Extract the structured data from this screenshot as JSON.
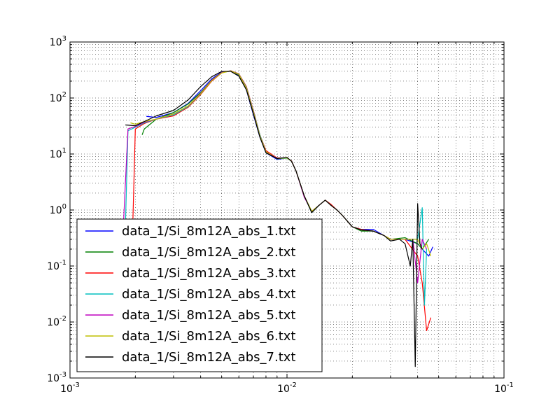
{
  "chart_data": {
    "type": "line",
    "title": "",
    "xlabel": "",
    "ylabel": "",
    "xscale": "log",
    "yscale": "log",
    "xlim": [
      0.001,
      0.1
    ],
    "ylim": [
      0.001,
      1000
    ],
    "grid": "on (major and minor, dotted)",
    "legend_position": "lower-left",
    "x_tick_labels": [
      {
        "base": "10",
        "exp": "-3",
        "value": 0.001
      },
      {
        "base": "10",
        "exp": "-2",
        "value": 0.01
      },
      {
        "base": "10",
        "exp": "-1",
        "value": 0.1
      }
    ],
    "y_tick_labels": [
      {
        "base": "10",
        "exp": "-3",
        "value": 0.001
      },
      {
        "base": "10",
        "exp": "-2",
        "value": 0.01
      },
      {
        "base": "10",
        "exp": "-1",
        "value": 0.1
      },
      {
        "base": "10",
        "exp": "0",
        "value": 1
      },
      {
        "base": "10",
        "exp": "1",
        "value": 10
      },
      {
        "base": "10",
        "exp": "2",
        "value": 100
      },
      {
        "base": "10",
        "exp": "3",
        "value": 1000
      }
    ],
    "series": [
      {
        "name": "data_1/Si_8m12A_abs_1.txt",
        "color": "#0000ff",
        "x": [
          0.00225,
          0.0025,
          0.003,
          0.0035,
          0.004,
          0.0045,
          0.005,
          0.0055,
          0.006,
          0.0065,
          0.007,
          0.0075,
          0.008,
          0.009,
          0.01,
          0.0105,
          0.011,
          0.012,
          0.013,
          0.014,
          0.015,
          0.016,
          0.017,
          0.018,
          0.02,
          0.022,
          0.025,
          0.028,
          0.03,
          0.035,
          0.04,
          0.042,
          0.045,
          0.047
        ],
        "y": [
          47,
          45,
          55,
          80,
          135,
          220,
          290,
          300,
          250,
          140,
          50,
          20,
          10.5,
          8,
          8.5,
          7.5,
          5,
          1.8,
          0.9,
          1.2,
          1.5,
          1.2,
          1.0,
          0.8,
          0.5,
          0.45,
          0.45,
          0.35,
          0.3,
          0.3,
          0.25,
          0.2,
          0.15,
          0.22
        ]
      },
      {
        "name": "data_1/Si_8m12A_abs_2.txt",
        "color": "#008000",
        "x": [
          0.00215,
          0.0022,
          0.0025,
          0.003,
          0.0035,
          0.004,
          0.0045,
          0.005,
          0.0055,
          0.006,
          0.0065,
          0.007,
          0.0075,
          0.008,
          0.009,
          0.01,
          0.0105,
          0.011,
          0.012,
          0.013,
          0.014,
          0.015,
          0.016,
          0.017,
          0.018,
          0.02,
          0.022,
          0.025,
          0.028,
          0.03,
          0.035,
          0.04,
          0.042,
          0.045
        ],
        "y": [
          22,
          28,
          42,
          55,
          78,
          125,
          210,
          285,
          305,
          260,
          150,
          55,
          21,
          11,
          8.2,
          8.5,
          7.5,
          5,
          1.8,
          0.9,
          1.2,
          1.5,
          1.2,
          1.0,
          0.8,
          0.5,
          0.42,
          0.42,
          0.35,
          0.3,
          0.32,
          0.25,
          0.2,
          0.3
        ]
      },
      {
        "name": "data_1/Si_8m12A_abs_3.txt",
        "color": "#ff0000",
        "x": [
          0.00195,
          0.002,
          0.0022,
          0.0025,
          0.003,
          0.0035,
          0.004,
          0.0045,
          0.005,
          0.0055,
          0.006,
          0.0065,
          0.007,
          0.0075,
          0.008,
          0.009,
          0.01,
          0.0105,
          0.011,
          0.012,
          0.013,
          0.014,
          0.015,
          0.016,
          0.017,
          0.018,
          0.02,
          0.022,
          0.025,
          0.028,
          0.03,
          0.035,
          0.04,
          0.042,
          0.044,
          0.046
        ],
        "y": [
          0.7,
          28,
          35,
          42,
          48,
          68,
          115,
          200,
          280,
          308,
          270,
          160,
          60,
          22,
          11.5,
          8.5,
          8.5,
          7.5,
          5,
          1.8,
          0.95,
          1.2,
          1.5,
          1.25,
          1.0,
          0.8,
          0.5,
          0.45,
          0.42,
          0.35,
          0.3,
          0.3,
          0.15,
          0.05,
          0.007,
          0.012
        ]
      },
      {
        "name": "data_1/Si_8m12A_abs_4.txt",
        "color": "#00bfbf",
        "x": [
          0.0018,
          0.00185,
          0.002,
          0.0022,
          0.0025,
          0.003,
          0.0035,
          0.004,
          0.0045,
          0.005,
          0.0055,
          0.006,
          0.0065,
          0.007,
          0.0075,
          0.008,
          0.009,
          0.01,
          0.0105,
          0.011,
          0.012,
          0.013,
          0.014,
          0.015,
          0.016,
          0.017,
          0.018,
          0.02,
          0.022,
          0.025,
          0.028,
          0.03,
          0.035,
          0.04,
          0.042,
          0.043,
          0.044
        ],
        "y": [
          0.5,
          26,
          30,
          36,
          42,
          50,
          70,
          118,
          205,
          282,
          306,
          268,
          155,
          58,
          22,
          11,
          8.3,
          8.4,
          7.4,
          5,
          1.8,
          0.95,
          1.2,
          1.5,
          1.2,
          1.0,
          0.8,
          0.5,
          0.44,
          0.42,
          0.35,
          0.3,
          0.3,
          0.3,
          1.1,
          0.02,
          0.2
        ]
      },
      {
        "name": "data_1/Si_8m12A_abs_5.txt",
        "color": "#bf00bf",
        "x": [
          0.00175,
          0.00185,
          0.002,
          0.0022,
          0.0025,
          0.003,
          0.0035,
          0.004,
          0.0045,
          0.005,
          0.0055,
          0.006,
          0.0065,
          0.007,
          0.0075,
          0.008,
          0.009,
          0.01,
          0.0105,
          0.011,
          0.012,
          0.013,
          0.014,
          0.015,
          0.016,
          0.017,
          0.018,
          0.02,
          0.022,
          0.025,
          0.028,
          0.03,
          0.035,
          0.038,
          0.04,
          0.042,
          0.044
        ],
        "y": [
          0.3,
          28,
          31,
          37,
          42,
          52,
          72,
          120,
          208,
          284,
          305,
          266,
          150,
          56,
          21,
          11,
          8.4,
          8.6,
          7.4,
          5,
          1.7,
          0.95,
          1.2,
          1.5,
          1.2,
          1.0,
          0.8,
          0.5,
          0.44,
          0.42,
          0.35,
          0.3,
          0.3,
          0.3,
          0.05,
          0.3,
          0.2
        ]
      },
      {
        "name": "data_1/Si_8m12A_abs_6.txt",
        "color": "#bfbf00",
        "x": [
          0.0019,
          0.002,
          0.0022,
          0.0025,
          0.003,
          0.0035,
          0.004,
          0.0045,
          0.005,
          0.0055,
          0.006,
          0.0065,
          0.007,
          0.0075,
          0.008,
          0.009,
          0.01,
          0.0105,
          0.011,
          0.012,
          0.013,
          0.014,
          0.015,
          0.016,
          0.017,
          0.018,
          0.02,
          0.022,
          0.025,
          0.028,
          0.03,
          0.035,
          0.04,
          0.042,
          0.044,
          0.046
        ],
        "y": [
          36,
          34,
          38,
          42,
          52,
          72,
          118,
          205,
          280,
          305,
          265,
          150,
          56,
          21,
          11,
          8.3,
          8.5,
          7.4,
          5,
          1.8,
          0.95,
          1.2,
          1.5,
          1.2,
          1.0,
          0.8,
          0.5,
          0.44,
          0.42,
          0.35,
          0.3,
          0.3,
          0.3,
          0.2,
          0.25,
          0.15
        ]
      },
      {
        "name": "data_1/Si_8m12A_abs_7.txt",
        "color": "#000000",
        "x": [
          0.0018,
          0.002,
          0.0022,
          0.0025,
          0.003,
          0.0035,
          0.004,
          0.0045,
          0.005,
          0.0055,
          0.006,
          0.0065,
          0.007,
          0.0075,
          0.008,
          0.009,
          0.01,
          0.0105,
          0.011,
          0.012,
          0.013,
          0.014,
          0.015,
          0.016,
          0.017,
          0.018,
          0.02,
          0.022,
          0.025,
          0.028,
          0.03,
          0.033,
          0.035,
          0.037,
          0.038,
          0.039,
          0.04,
          0.041,
          0.042
        ],
        "y": [
          33,
          32,
          38,
          48,
          60,
          92,
          160,
          240,
          298,
          300,
          245,
          140,
          52,
          20,
          10.5,
          8.3,
          8.7,
          7.4,
          5,
          1.8,
          0.9,
          1.2,
          1.5,
          1.2,
          1.0,
          0.8,
          0.5,
          0.44,
          0.42,
          0.35,
          0.28,
          0.3,
          0.25,
          0.1,
          0.3,
          0.0016,
          1.3,
          0.25,
          0.2
        ]
      }
    ]
  }
}
